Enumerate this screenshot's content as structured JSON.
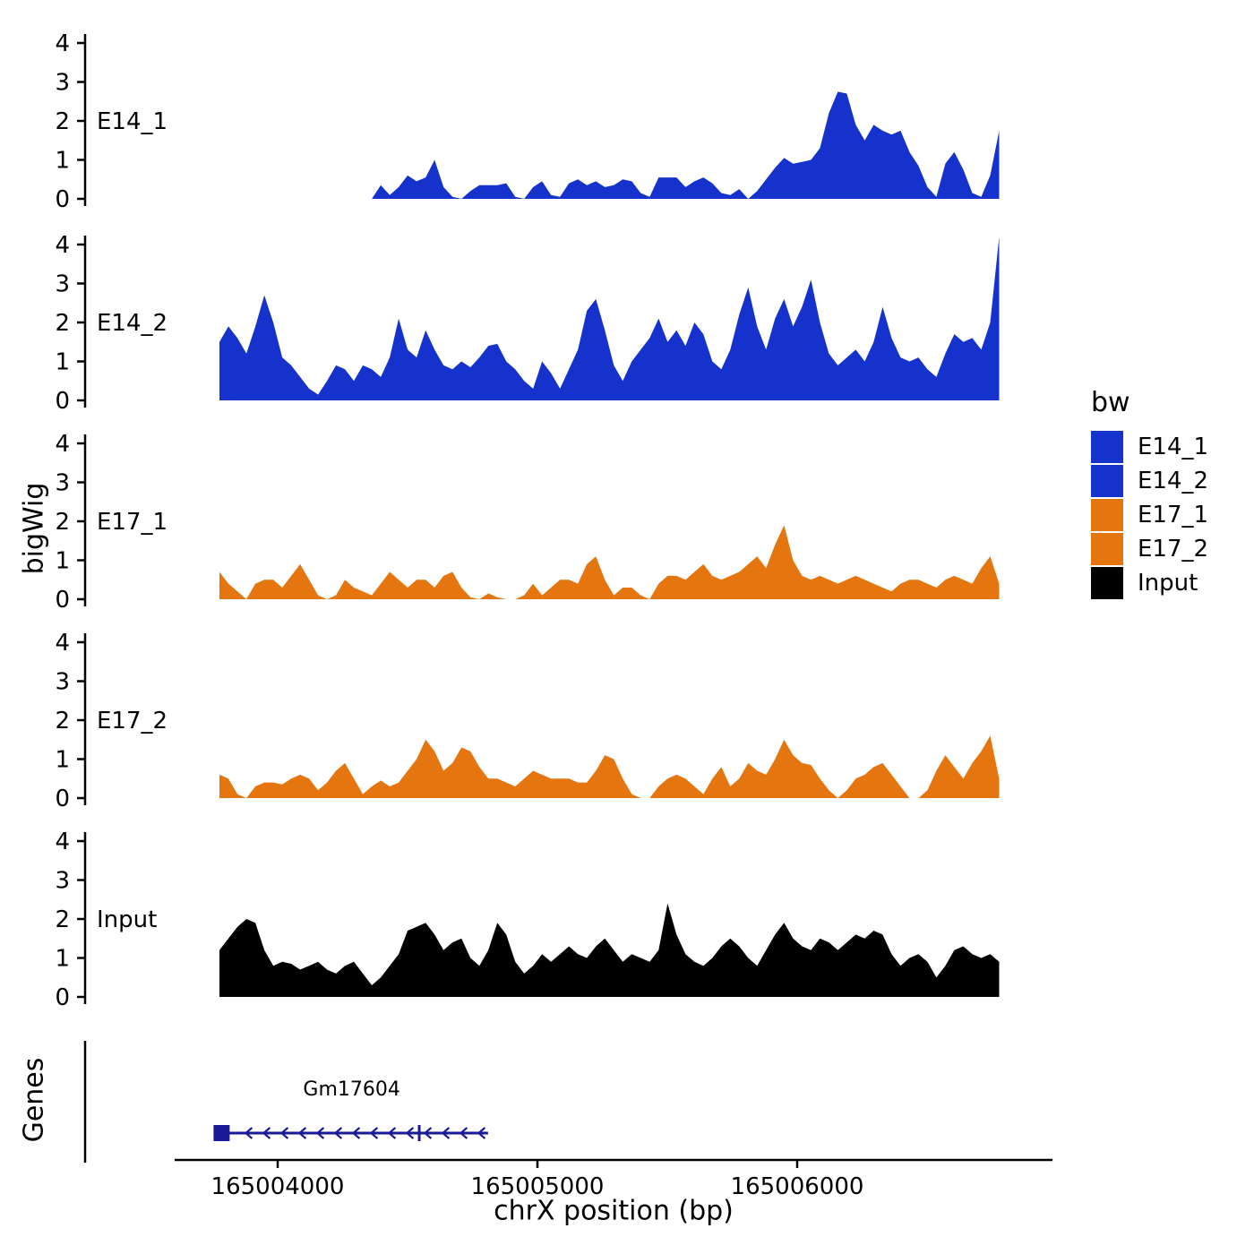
{
  "figure": {
    "y_axis_title": "bigWig",
    "genes_axis_title": "Genes",
    "x_axis_title": "chrX position (bp)"
  },
  "legend": {
    "title": "bw",
    "items": [
      {
        "label": "E14_1",
        "color": "#1533CC"
      },
      {
        "label": "E14_2",
        "color": "#1533CC"
      },
      {
        "label": "E17_1",
        "color": "#E5750F"
      },
      {
        "label": "E17_2",
        "color": "#E5750F"
      },
      {
        "label": "Input",
        "color": "#000000"
      }
    ]
  },
  "chart_data": {
    "type": "area",
    "subtype": "genome-coverage-tracks",
    "x_unit": "bp",
    "chromosome": "chrX",
    "x_start": 165003776,
    "x_step": 34.5,
    "xlim": [
      165003600,
      165006980
    ],
    "ylim_per_track": [
      0,
      4.3
    ],
    "x_ticks": [
      165004000,
      165005000,
      165006000
    ],
    "y_ticks": [
      0,
      1,
      2,
      3,
      4
    ],
    "series": [
      {
        "name": "E14_1",
        "color": "#1533CC",
        "values": [
          0,
          0,
          0,
          0,
          0,
          0,
          0,
          0,
          0,
          0,
          0,
          0,
          0,
          0,
          0,
          0,
          0,
          0,
          0.35,
          0.1,
          0.3,
          0.6,
          0.45,
          0.55,
          1.0,
          0.3,
          0.05,
          0,
          0.2,
          0.35,
          0.35,
          0.35,
          0.4,
          0.05,
          0,
          0.3,
          0.45,
          0.1,
          0.05,
          0.4,
          0.5,
          0.35,
          0.45,
          0.3,
          0.35,
          0.5,
          0.45,
          0.15,
          0.05,
          0.55,
          0.55,
          0.55,
          0.3,
          0.45,
          0.55,
          0.4,
          0.15,
          0.1,
          0.25,
          0,
          0.2,
          0.5,
          0.8,
          1.05,
          0.9,
          0.95,
          1.0,
          1.3,
          2.2,
          2.75,
          2.7,
          1.9,
          1.5,
          1.9,
          1.75,
          1.65,
          1.75,
          1.2,
          0.85,
          0.3,
          0.05,
          0.9,
          1.2,
          0.75,
          0.15,
          0.05,
          0.6,
          1.75
        ]
      },
      {
        "name": "E14_2",
        "color": "#1533CC",
        "values": [
          1.5,
          1.9,
          1.6,
          1.2,
          1.9,
          2.7,
          2.0,
          1.1,
          0.9,
          0.6,
          0.3,
          0.15,
          0.5,
          0.9,
          0.8,
          0.5,
          0.9,
          0.8,
          0.6,
          1.1,
          2.1,
          1.3,
          1.1,
          1.8,
          1.3,
          0.9,
          0.8,
          1.0,
          0.85,
          1.1,
          1.4,
          1.45,
          1.0,
          0.8,
          0.5,
          0.3,
          1.0,
          0.7,
          0.3,
          0.8,
          1.3,
          2.3,
          2.6,
          1.8,
          0.9,
          0.5,
          1.0,
          1.3,
          1.6,
          2.1,
          1.5,
          1.8,
          1.4,
          2.0,
          1.7,
          1.0,
          0.8,
          1.3,
          2.2,
          2.9,
          1.9,
          1.3,
          2.1,
          2.6,
          1.9,
          2.4,
          3.1,
          2.0,
          1.2,
          0.9,
          1.1,
          1.3,
          1.0,
          1.5,
          2.4,
          1.6,
          1.1,
          1.0,
          1.1,
          0.8,
          0.6,
          1.2,
          1.7,
          1.5,
          1.6,
          1.3,
          2.0,
          4.2
        ]
      },
      {
        "name": "E17_1",
        "color": "#E5750F",
        "values": [
          0.7,
          0.4,
          0.2,
          0,
          0.4,
          0.5,
          0.5,
          0.3,
          0.6,
          0.9,
          0.5,
          0.1,
          0,
          0.1,
          0.5,
          0.3,
          0.2,
          0.1,
          0.4,
          0.7,
          0.5,
          0.3,
          0.5,
          0.5,
          0.3,
          0.6,
          0.7,
          0.3,
          0.05,
          0,
          0.15,
          0.05,
          0,
          0,
          0.1,
          0.4,
          0.1,
          0.3,
          0.5,
          0.5,
          0.4,
          0.9,
          1.1,
          0.5,
          0.1,
          0.3,
          0.3,
          0.1,
          0,
          0.4,
          0.6,
          0.6,
          0.5,
          0.7,
          0.9,
          0.6,
          0.5,
          0.6,
          0.7,
          0.9,
          1.1,
          0.8,
          1.4,
          1.9,
          1.0,
          0.6,
          0.5,
          0.6,
          0.5,
          0.4,
          0.5,
          0.6,
          0.5,
          0.4,
          0.3,
          0.2,
          0.4,
          0.5,
          0.5,
          0.4,
          0.3,
          0.5,
          0.6,
          0.5,
          0.4,
          0.8,
          1.1,
          0.4
        ]
      },
      {
        "name": "E17_2",
        "color": "#E5750F",
        "values": [
          0.6,
          0.5,
          0.1,
          0,
          0.3,
          0.4,
          0.4,
          0.35,
          0.5,
          0.6,
          0.5,
          0.2,
          0.4,
          0.7,
          0.9,
          0.5,
          0.1,
          0.3,
          0.45,
          0.3,
          0.4,
          0.7,
          1.0,
          1.5,
          1.2,
          0.7,
          0.9,
          1.3,
          1.2,
          0.8,
          0.5,
          0.5,
          0.4,
          0.3,
          0.5,
          0.7,
          0.6,
          0.5,
          0.5,
          0.5,
          0.4,
          0.4,
          0.7,
          1.1,
          1.0,
          0.5,
          0.1,
          0,
          0,
          0.3,
          0.5,
          0.6,
          0.5,
          0.3,
          0.1,
          0.5,
          0.8,
          0.3,
          0.5,
          0.9,
          0.7,
          0.6,
          1.0,
          1.5,
          1.1,
          0.9,
          0.85,
          0.5,
          0.2,
          0,
          0.2,
          0.5,
          0.6,
          0.8,
          0.9,
          0.6,
          0.3,
          0,
          0,
          0.2,
          0.7,
          1.1,
          0.8,
          0.5,
          0.9,
          1.2,
          1.6,
          0.5
        ]
      },
      {
        "name": "Input",
        "color": "#000000",
        "values": [
          1.2,
          1.5,
          1.8,
          2.0,
          1.9,
          1.2,
          0.8,
          0.9,
          0.85,
          0.7,
          0.8,
          0.9,
          0.7,
          0.6,
          0.8,
          0.9,
          0.6,
          0.3,
          0.5,
          0.8,
          1.1,
          1.7,
          1.8,
          1.9,
          1.6,
          1.2,
          1.4,
          1.5,
          1.0,
          0.8,
          1.2,
          1.9,
          1.6,
          0.9,
          0.6,
          0.8,
          1.1,
          0.9,
          1.1,
          1.3,
          1.1,
          1.0,
          1.3,
          1.5,
          1.2,
          0.9,
          1.1,
          1.0,
          0.9,
          1.2,
          2.4,
          1.6,
          1.1,
          0.9,
          0.8,
          1.0,
          1.3,
          1.5,
          1.3,
          1.0,
          0.8,
          1.2,
          1.6,
          1.9,
          1.5,
          1.3,
          1.2,
          1.5,
          1.4,
          1.2,
          1.4,
          1.6,
          1.5,
          1.7,
          1.6,
          1.1,
          0.8,
          1.0,
          1.1,
          0.9,
          0.5,
          0.8,
          1.2,
          1.3,
          1.1,
          1.0,
          1.1,
          0.9
        ]
      }
    ],
    "gene_track": {
      "title": "Genes",
      "genes": [
        {
          "name": "Gm17604",
          "start": 165003760,
          "end": 165004810,
          "strand": "-",
          "exon_marks": [
            165004545
          ],
          "color": "#1A1A99"
        }
      ]
    }
  }
}
